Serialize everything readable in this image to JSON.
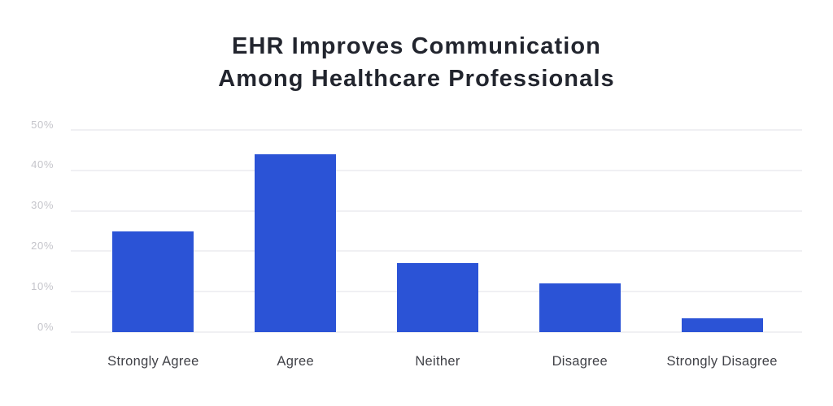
{
  "chart_data": {
    "type": "bar",
    "title": "EHR Improves Communication Among Healthcare Professionals",
    "title_lines": [
      "EHR Improves Communication",
      "Among Healthcare Professionals"
    ],
    "categories": [
      "Strongly Agree",
      "Agree",
      "Neither",
      "Disagree",
      "Strongly Disagree"
    ],
    "values": [
      25,
      44,
      17,
      12,
      3.5
    ],
    "value_unit": "%",
    "xlabel": "",
    "ylabel": "",
    "ylim": [
      0,
      50
    ],
    "yticks": [
      0,
      10,
      20,
      30,
      40,
      50
    ],
    "ytick_labels": [
      "0%",
      "10%",
      "20%",
      "30%",
      "40%",
      "50%"
    ],
    "grid": true,
    "legend": false,
    "colors": {
      "background": "#ffffff",
      "title": "#22252e",
      "bar": "#2b53d6",
      "gridline": "#f0f0f3",
      "ytick_label": "#c4c4ca",
      "category_label": "#414248"
    }
  }
}
